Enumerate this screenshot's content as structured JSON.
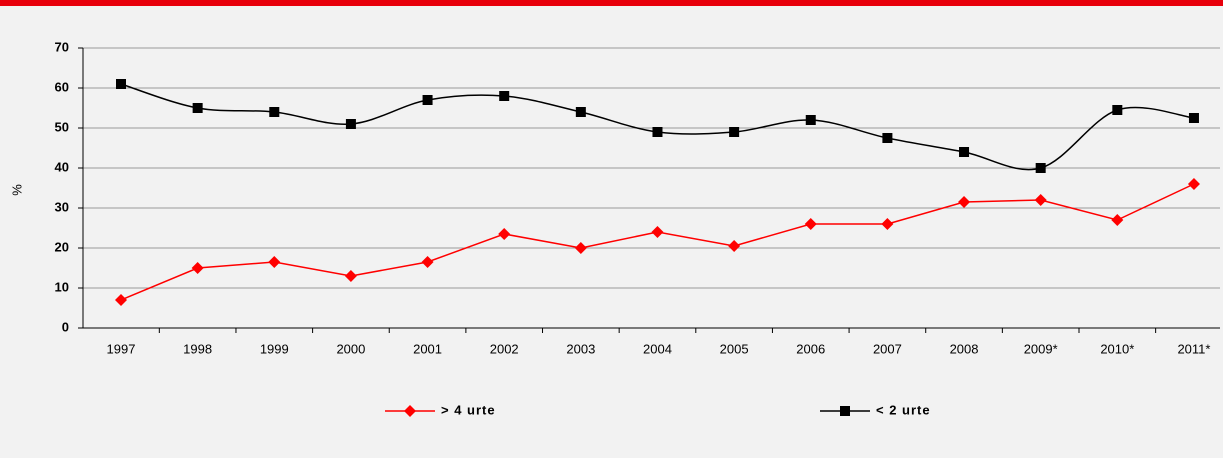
{
  "chart_data": {
    "type": "line",
    "ylabel": "%",
    "categories": [
      "1997",
      "1998",
      "1999",
      "2000",
      "2001",
      "2002",
      "2003",
      "2004",
      "2005",
      "2006",
      "2007",
      "2008",
      "2009*",
      "2010*",
      "2011*"
    ],
    "series": [
      {
        "name": "> 4 urte",
        "color": "#ff0000",
        "marker": "diamond",
        "smooth": false,
        "values": [
          7,
          15,
          16.5,
          13,
          16.5,
          23.5,
          20,
          24,
          20.5,
          26,
          26,
          31.5,
          32,
          27,
          36
        ]
      },
      {
        "name": "< 2 urte",
        "color": "#000000",
        "marker": "square",
        "smooth": true,
        "values": [
          61,
          55,
          54,
          51,
          57,
          58,
          54,
          49,
          49,
          52,
          47.5,
          44,
          40,
          54.5,
          52.5
        ]
      }
    ],
    "ylim": [
      0,
      70
    ],
    "yticks": [
      0,
      10,
      20,
      30,
      40,
      50,
      60,
      70
    ],
    "grid": true,
    "legend": "bottom"
  }
}
